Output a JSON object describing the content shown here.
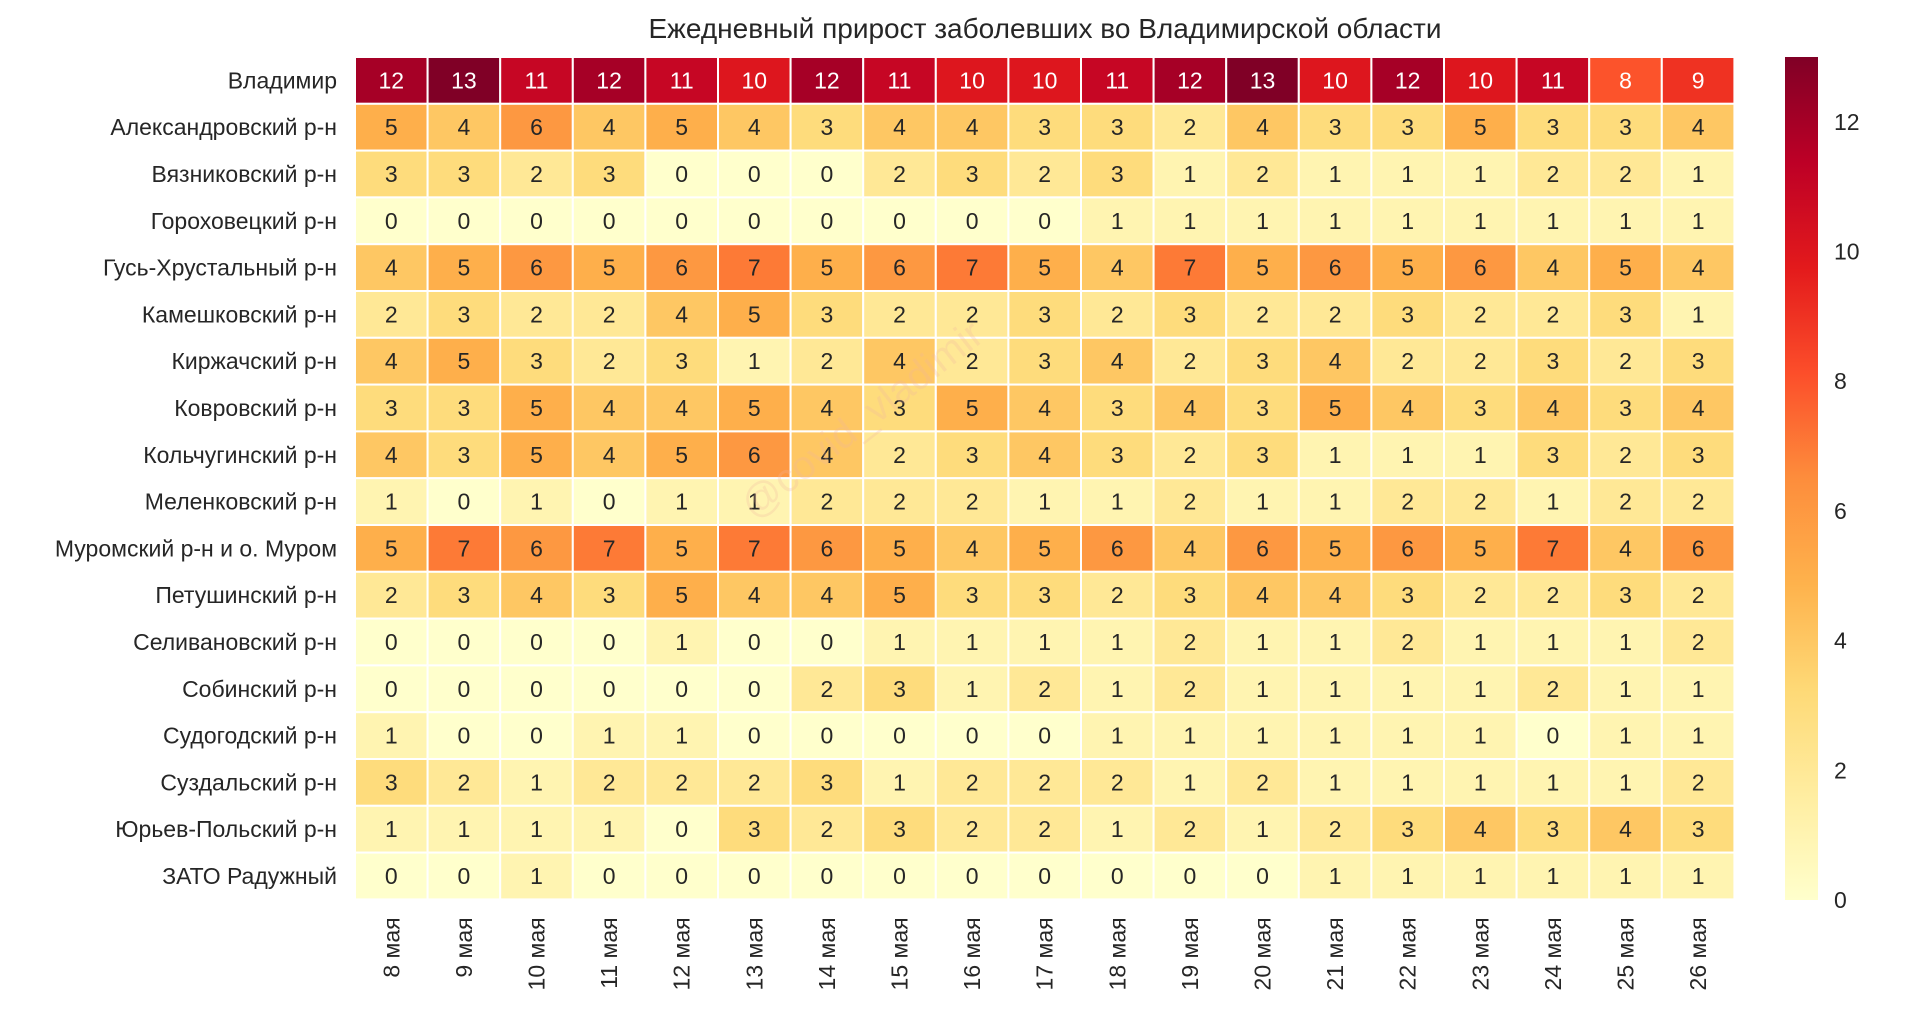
{
  "chart_data": {
    "type": "heatmap",
    "title": "Ежедневный прирост заболевших во Владимирской области",
    "xlabel": "",
    "ylabel": "",
    "watermark": "@covid_vladimir",
    "columns": [
      "8 мая",
      "9 мая",
      "10 мая",
      "11 мая",
      "12 мая",
      "13 мая",
      "14 мая",
      "15 мая",
      "16 мая",
      "17 мая",
      "18 мая",
      "19 мая",
      "20 мая",
      "21 мая",
      "22 мая",
      "23 мая",
      "24 мая",
      "25 мая",
      "26 мая"
    ],
    "rows": [
      "Владимир",
      "Александровский р-н",
      "Вязниковский р-н",
      "Гороховецкий р-н",
      "Гусь-Хрустальный р-н",
      "Камешковский р-н",
      "Киржачский р-н",
      "Ковровский р-н",
      "Кольчугинский р-н",
      "Меленковский р-н",
      "Муромский р-н и о. Муром",
      "Петушинский р-н",
      "Селивановский р-н",
      "Собинский р-н",
      "Судогодский р-н",
      "Суздальский р-н",
      "Юрьев-Польский р-н",
      "ЗАТО Радужный"
    ],
    "values": [
      [
        12,
        13,
        11,
        12,
        11,
        10,
        12,
        11,
        10,
        10,
        11,
        12,
        13,
        10,
        12,
        10,
        11,
        8,
        9
      ],
      [
        5,
        4,
        6,
        4,
        5,
        4,
        3,
        4,
        4,
        3,
        3,
        2,
        4,
        3,
        3,
        5,
        3,
        3,
        4
      ],
      [
        3,
        3,
        2,
        3,
        0,
        0,
        0,
        2,
        3,
        2,
        3,
        1,
        2,
        1,
        1,
        1,
        2,
        2,
        1
      ],
      [
        0,
        0,
        0,
        0,
        0,
        0,
        0,
        0,
        0,
        0,
        1,
        1,
        1,
        1,
        1,
        1,
        1,
        1,
        1
      ],
      [
        4,
        5,
        6,
        5,
        6,
        7,
        5,
        6,
        7,
        5,
        4,
        7,
        5,
        6,
        5,
        6,
        4,
        5,
        4
      ],
      [
        2,
        3,
        2,
        2,
        4,
        5,
        3,
        2,
        2,
        3,
        2,
        3,
        2,
        2,
        3,
        2,
        2,
        3,
        1
      ],
      [
        4,
        5,
        3,
        2,
        3,
        1,
        2,
        4,
        2,
        3,
        4,
        2,
        3,
        4,
        2,
        2,
        3,
        2,
        3
      ],
      [
        3,
        3,
        5,
        4,
        4,
        5,
        4,
        3,
        5,
        4,
        3,
        4,
        3,
        5,
        4,
        3,
        4,
        3,
        4
      ],
      [
        4,
        3,
        5,
        4,
        5,
        6,
        4,
        2,
        3,
        4,
        3,
        2,
        3,
        1,
        1,
        1,
        3,
        2,
        3
      ],
      [
        1,
        0,
        1,
        0,
        1,
        1,
        2,
        2,
        2,
        1,
        1,
        2,
        1,
        1,
        2,
        2,
        1,
        2,
        2
      ],
      [
        5,
        7,
        6,
        7,
        5,
        7,
        6,
        5,
        4,
        5,
        6,
        4,
        6,
        5,
        6,
        5,
        7,
        4,
        6
      ],
      [
        2,
        3,
        4,
        3,
        5,
        4,
        4,
        5,
        3,
        3,
        2,
        3,
        4,
        4,
        3,
        2,
        2,
        3,
        2
      ],
      [
        0,
        0,
        0,
        0,
        1,
        0,
        0,
        1,
        1,
        1,
        1,
        2,
        1,
        1,
        2,
        1,
        1,
        1,
        2
      ],
      [
        0,
        0,
        0,
        0,
        0,
        0,
        2,
        3,
        1,
        2,
        1,
        2,
        1,
        1,
        1,
        1,
        2,
        1,
        1
      ],
      [
        1,
        0,
        0,
        1,
        1,
        0,
        0,
        0,
        0,
        0,
        1,
        1,
        1,
        1,
        1,
        1,
        0,
        1,
        1
      ],
      [
        3,
        2,
        1,
        2,
        2,
        2,
        3,
        1,
        2,
        2,
        2,
        1,
        2,
        1,
        1,
        1,
        1,
        1,
        2
      ],
      [
        1,
        1,
        1,
        1,
        0,
        3,
        2,
        3,
        2,
        2,
        1,
        2,
        1,
        2,
        3,
        4,
        3,
        4,
        3
      ],
      [
        0,
        0,
        1,
        0,
        0,
        0,
        0,
        0,
        0,
        0,
        0,
        0,
        0,
        1,
        1,
        1,
        1,
        1,
        1
      ]
    ],
    "colorbar": {
      "range": [
        0,
        13
      ],
      "ticks": [
        0,
        2,
        4,
        6,
        8,
        10,
        12
      ],
      "colormap": "YlOrRd",
      "colors": [
        "#ffffcc",
        "#ffeda0",
        "#fed976",
        "#feb24c",
        "#fd8d3c",
        "#fc4e2a",
        "#e31a1c",
        "#bd0026",
        "#800026"
      ]
    }
  }
}
